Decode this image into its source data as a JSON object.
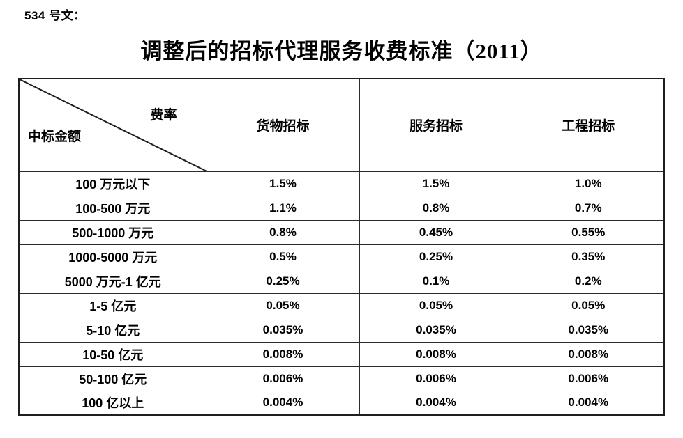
{
  "page": {
    "doc_label": "534 号文：",
    "title": "调整后的招标代理服务收费标准（2011）"
  },
  "table": {
    "corner": {
      "top_right_label": "费率",
      "bottom_left_label": "中标金额"
    },
    "columns": [
      "货物招标",
      "服务招标",
      "工程招标"
    ],
    "rows": [
      {
        "label": "100 万元以下",
        "values": [
          "1.5%",
          "1.5%",
          "1.0%"
        ]
      },
      {
        "label": "100-500 万元",
        "values": [
          "1.1%",
          "0.8%",
          "0.7%"
        ]
      },
      {
        "label": "500-1000 万元",
        "values": [
          "0.8%",
          "0.45%",
          "0.55%"
        ]
      },
      {
        "label": "1000-5000 万元",
        "values": [
          "0.5%",
          "0.25%",
          "0.35%"
        ]
      },
      {
        "label": "5000 万元-1 亿元",
        "values": [
          "0.25%",
          "0.1%",
          "0.2%"
        ]
      },
      {
        "label": "1-5 亿元",
        "values": [
          "0.05%",
          "0.05%",
          "0.05%"
        ]
      },
      {
        "label": "5-10 亿元",
        "values": [
          "0.035%",
          "0.035%",
          "0.035%"
        ]
      },
      {
        "label": "10-50 亿元",
        "values": [
          "0.008%",
          "0.008%",
          "0.008%"
        ]
      },
      {
        "label": "50-100 亿元",
        "values": [
          "0.006%",
          "0.006%",
          "0.006%"
        ]
      },
      {
        "label": "100 亿以上",
        "values": [
          "0.004%",
          "0.004%",
          "0.004%"
        ]
      }
    ]
  },
  "colors": {
    "text": "#000000",
    "border": "#2b2b2b",
    "background": "#ffffff"
  }
}
